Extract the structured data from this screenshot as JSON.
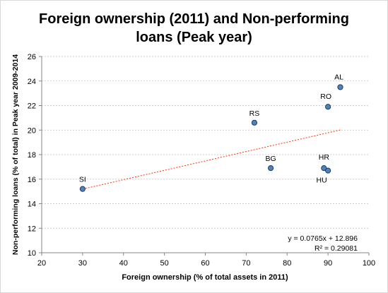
{
  "chart_data": {
    "type": "scatter",
    "title": "Foreign ownership (2011) and Non-performing loans (Peak year)",
    "xlabel": "Foreign ownership  (% of total assets in 2011)",
    "ylabel": "Non-performing loans (% of total) in Peak year 2009-2014",
    "xlim": [
      20,
      100
    ],
    "ylim": [
      10,
      26
    ],
    "x_ticks": [
      20,
      30,
      40,
      50,
      60,
      70,
      80,
      90,
      100
    ],
    "y_ticks": [
      10,
      12,
      14,
      16,
      18,
      20,
      22,
      24,
      26
    ],
    "grid": "horizontal",
    "points": [
      {
        "label": "SI",
        "x": 30,
        "y": 15.2
      },
      {
        "label": "RS",
        "x": 72,
        "y": 20.6
      },
      {
        "label": "BG",
        "x": 76,
        "y": 16.9
      },
      {
        "label": "HR",
        "x": 89,
        "y": 16.9
      },
      {
        "label": "HU",
        "x": 90,
        "y": 16.7
      },
      {
        "label": "RO",
        "x": 90,
        "y": 21.9
      },
      {
        "label": "AL",
        "x": 93,
        "y": 23.5
      }
    ],
    "trendline": {
      "type": "linear",
      "slope": 0.0765,
      "intercept": 12.896,
      "x_range": [
        30,
        93
      ],
      "equation": "y = 0.0765x + 12.896",
      "r_squared": "R² = 0.29081"
    },
    "colors": {
      "marker_fill": "#4f81bd",
      "marker_stroke": "#1f3a5f",
      "trendline": "#ff3300",
      "grid": "#bfbfbf",
      "axis": "#868686"
    }
  }
}
